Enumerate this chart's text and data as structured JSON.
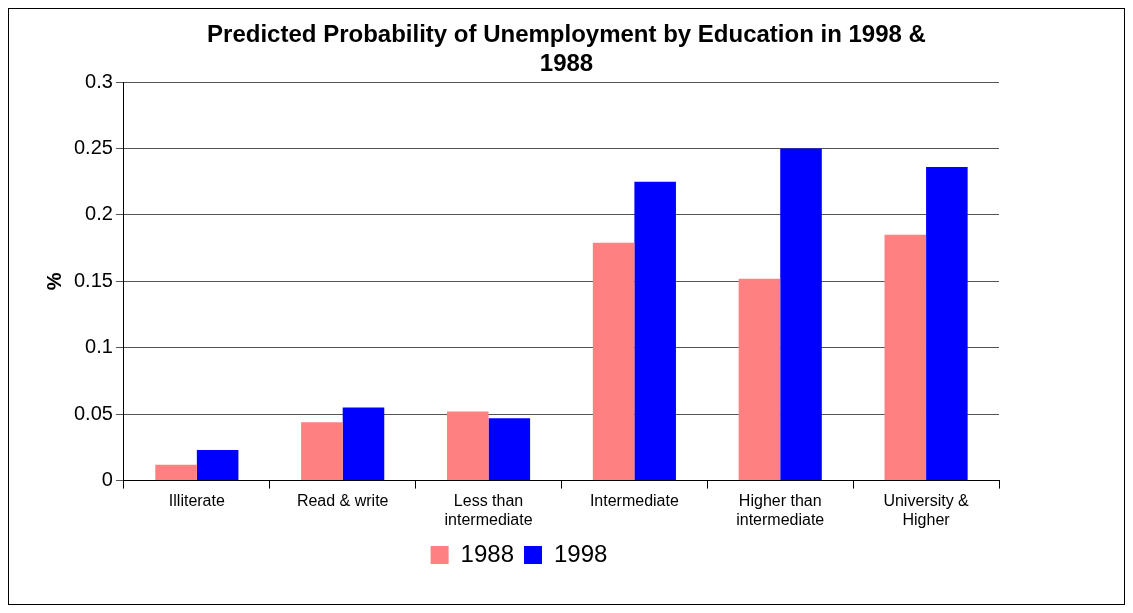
{
  "chart_data": {
    "type": "bar",
    "title": "Predicted Probability of Unemployment by Education in 1998 & 1988",
    "ylabel": "%",
    "categories": [
      "Illiterate",
      "Read & write",
      "Less than intermediate",
      "Intermediate",
      "Higher than intermediate",
      "University & Higher"
    ],
    "series": [
      {
        "name": "1988",
        "color": "#ff8080",
        "values": [
          0.012,
          0.044,
          0.052,
          0.179,
          0.152,
          0.185
        ]
      },
      {
        "name": "1998",
        "color": "#0000ff",
        "values": [
          0.023,
          0.055,
          0.047,
          0.225,
          0.25,
          0.236
        ]
      }
    ],
    "ylim": [
      0,
      0.3
    ],
    "yticks": [
      0,
      0.05,
      0.1,
      0.15,
      0.2,
      0.25,
      0.3
    ],
    "grid": "y",
    "legend": "bottom"
  }
}
